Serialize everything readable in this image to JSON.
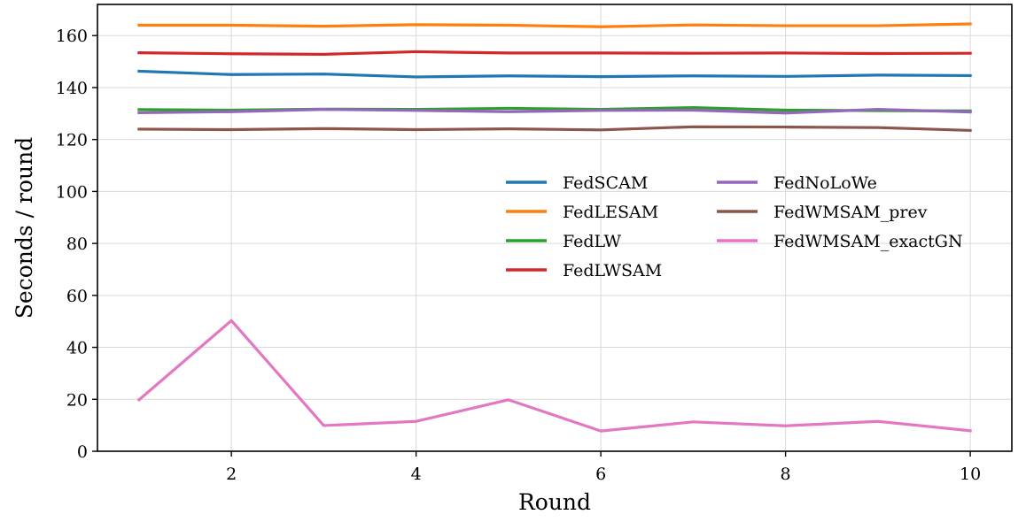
{
  "chart_data": {
    "type": "line",
    "title": "",
    "xlabel": "Round",
    "ylabel": "Seconds / round",
    "x": [
      1,
      2,
      3,
      4,
      5,
      6,
      7,
      8,
      9,
      10
    ],
    "xlim": [
      0.55,
      10.45
    ],
    "ylim": [
      0,
      172
    ],
    "xticks": [
      2,
      4,
      6,
      8,
      10
    ],
    "yticks": [
      0,
      20,
      40,
      60,
      80,
      100,
      120,
      140,
      160
    ],
    "grid": true,
    "legend": {
      "placement": "center-right",
      "columns": 2
    },
    "series": [
      {
        "name": "FedSCAM",
        "color": "#1f77b4",
        "values": [
          146.3,
          145.0,
          145.2,
          144.1,
          144.5,
          144.2,
          144.5,
          144.3,
          144.8,
          144.6
        ]
      },
      {
        "name": "FedLESAM",
        "color": "#ff7f0e",
        "values": [
          164.0,
          164.0,
          163.6,
          164.2,
          164.0,
          163.4,
          164.1,
          163.8,
          163.8,
          164.5
        ]
      },
      {
        "name": "FedLW",
        "color": "#2ca02c",
        "values": [
          131.5,
          131.3,
          131.7,
          131.6,
          132.0,
          131.6,
          132.3,
          131.3,
          131.1,
          131.0
        ]
      },
      {
        "name": "FedLWSAM",
        "color": "#d62728",
        "values": [
          153.4,
          153.0,
          152.8,
          153.8,
          153.3,
          153.3,
          153.2,
          153.3,
          153.1,
          153.2
        ]
      },
      {
        "name": "FedNoLoWe",
        "color": "#9467bd",
        "values": [
          130.3,
          130.7,
          131.6,
          131.2,
          130.7,
          131.2,
          131.3,
          130.2,
          131.6,
          130.6
        ]
      },
      {
        "name": "FedWMSAM_prev",
        "color": "#8c564b",
        "values": [
          124.0,
          123.8,
          124.2,
          123.8,
          124.1,
          123.7,
          124.9,
          124.8,
          124.6,
          123.5
        ]
      },
      {
        "name": "FedWMSAM_exactGN",
        "color": "#e377c2",
        "values": [
          19.8,
          50.3,
          9.9,
          11.5,
          19.8,
          7.8,
          11.3,
          9.8,
          11.5,
          7.9
        ]
      }
    ]
  }
}
